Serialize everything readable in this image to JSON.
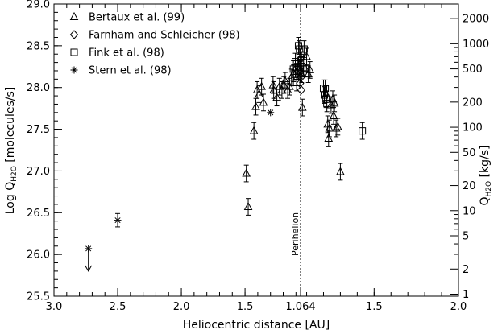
{
  "chart_data": {
    "type": "scatter",
    "xlabel": "Heliocentric distance [AU]",
    "ylabel_main": "Log Q",
    "ylabel_sub": "H2O",
    "ylabel_suffix": "[molecules/s]",
    "y2label_main": "Q",
    "y2label_sub": "H2O",
    "y2label_suffix": "[kg/s]",
    "x_axis_note": "pre-perihelion distances decrease from 3.0 to 1.064 AU at perihelion, post-perihelion distances increase from 1.064 to 2.0 AU",
    "x_ticks": [
      "3.0",
      "2.5",
      "2.0",
      "1.5",
      "1.064",
      "1.5",
      "2.0"
    ],
    "ylim": [
      25.5,
      29.0
    ],
    "y_ticks": [
      "25.5",
      "26.0",
      "26.5",
      "27.0",
      "27.5",
      "28.0",
      "28.5",
      "29.0"
    ],
    "y2_ticks": [
      {
        "label": "1",
        "kgs": 1
      },
      {
        "label": "2",
        "kgs": 2
      },
      {
        "label": "5",
        "kgs": 5
      },
      {
        "label": "10",
        "kgs": 10
      },
      {
        "label": "20",
        "kgs": 20
      },
      {
        "label": "50",
        "kgs": 50
      },
      {
        "label": "100",
        "kgs": 100
      },
      {
        "label": "200",
        "kgs": 200
      },
      {
        "label": "500",
        "kgs": 500
      },
      {
        "label": "1000",
        "kgs": 1000
      },
      {
        "label": "2000",
        "kgs": 2000
      }
    ],
    "perihelion_label": "Perihelion",
    "grid": false,
    "legend_position": "top-left",
    "series": [
      {
        "name": "Bertaux et al. (99)",
        "marker": "triangle",
        "points": [
          {
            "branch": "pre",
            "r": 1.49,
            "y": 26.97,
            "err": 0.1
          },
          {
            "branch": "pre",
            "r": 1.475,
            "y": 26.57,
            "err": 0.1
          },
          {
            "branch": "pre",
            "r": 1.43,
            "y": 27.48,
            "err": 0.1
          },
          {
            "branch": "pre",
            "r": 1.415,
            "y": 27.77,
            "err": 0.1
          },
          {
            "branch": "pre",
            "r": 1.405,
            "y": 27.97,
            "err": 0.1
          },
          {
            "branch": "pre",
            "r": 1.39,
            "y": 27.92,
            "err": 0.1
          },
          {
            "branch": "pre",
            "r": 1.37,
            "y": 28.01,
            "err": 0.1
          },
          {
            "branch": "pre",
            "r": 1.355,
            "y": 27.82,
            "err": 0.1
          },
          {
            "branch": "pre",
            "r": 1.28,
            "y": 28.03,
            "err": 0.1
          },
          {
            "branch": "pre",
            "r": 1.275,
            "y": 27.97,
            "err": 0.1
          },
          {
            "branch": "pre",
            "r": 1.25,
            "y": 27.88,
            "err": 0.1
          },
          {
            "branch": "pre",
            "r": 1.23,
            "y": 28.01,
            "err": 0.1
          },
          {
            "branch": "pre",
            "r": 1.21,
            "y": 27.97,
            "err": 0.1
          },
          {
            "branch": "pre",
            "r": 1.195,
            "y": 28.03,
            "err": 0.1
          },
          {
            "branch": "pre",
            "r": 1.185,
            "y": 28.08,
            "err": 0.1
          },
          {
            "branch": "pre",
            "r": 1.165,
            "y": 27.97,
            "err": 0.1
          },
          {
            "branch": "pre",
            "r": 1.15,
            "y": 28.01,
            "err": 0.1
          },
          {
            "branch": "pre",
            "r": 1.135,
            "y": 28.12,
            "err": 0.1
          },
          {
            "branch": "pre",
            "r": 1.12,
            "y": 28.17,
            "err": 0.1
          },
          {
            "branch": "pre",
            "r": 1.105,
            "y": 28.22,
            "err": 0.1
          },
          {
            "branch": "pre",
            "r": 1.095,
            "y": 28.19,
            "err": 0.1
          },
          {
            "branch": "pre",
            "r": 1.085,
            "y": 28.22,
            "err": 0.1
          },
          {
            "branch": "pre",
            "r": 1.075,
            "y": 28.24,
            "err": 0.1
          },
          {
            "branch": "post",
            "r": 1.07,
            "y": 28.16,
            "err": 0.1
          },
          {
            "branch": "post",
            "r": 1.075,
            "y": 27.76,
            "err": 0.1
          },
          {
            "branch": "post",
            "r": 1.09,
            "y": 28.23,
            "err": 0.1
          },
          {
            "branch": "post",
            "r": 1.1,
            "y": 28.37,
            "err": 0.1
          },
          {
            "branch": "post",
            "r": 1.11,
            "y": 28.16,
            "err": 0.1
          },
          {
            "branch": "post",
            "r": 1.12,
            "y": 28.21,
            "err": 0.1
          },
          {
            "branch": "post",
            "r": 1.215,
            "y": 27.92,
            "err": 0.1
          },
          {
            "branch": "post",
            "r": 1.225,
            "y": 27.56,
            "err": 0.1
          },
          {
            "branch": "post",
            "r": 1.23,
            "y": 27.39,
            "err": 0.1
          },
          {
            "branch": "post",
            "r": 1.235,
            "y": 27.51,
            "err": 0.1
          },
          {
            "branch": "post",
            "r": 1.245,
            "y": 27.79,
            "err": 0.1
          },
          {
            "branch": "post",
            "r": 1.255,
            "y": 27.86,
            "err": 0.1
          },
          {
            "branch": "post",
            "r": 1.26,
            "y": 27.66,
            "err": 0.1
          },
          {
            "branch": "post",
            "r": 1.265,
            "y": 27.81,
            "err": 0.1
          },
          {
            "branch": "post",
            "r": 1.275,
            "y": 27.51,
            "err": 0.1
          },
          {
            "branch": "post",
            "r": 1.285,
            "y": 27.53,
            "err": 0.1
          },
          {
            "branch": "post",
            "r": 1.3,
            "y": 26.99,
            "err": 0.1
          }
        ]
      },
      {
        "name": "Farnham and Schleicher (98)",
        "marker": "diamond",
        "points": [
          {
            "branch": "pre",
            "r": 1.07,
            "y": 28.18,
            "err": 0
          },
          {
            "branch": "pre",
            "r": 1.068,
            "y": 28.05,
            "err": 0
          },
          {
            "branch": "post",
            "r": 1.066,
            "y": 28.12,
            "err": 0
          },
          {
            "branch": "post",
            "r": 1.068,
            "y": 27.97,
            "err": 0
          }
        ]
      },
      {
        "name": "Fink et al. (98)",
        "marker": "square",
        "points": [
          {
            "branch": "pre",
            "r": 1.12,
            "y": 28.22,
            "err": 0.1
          },
          {
            "branch": "pre",
            "r": 1.105,
            "y": 28.31,
            "err": 0.1
          },
          {
            "branch": "pre",
            "r": 1.095,
            "y": 28.06,
            "err": 0.1
          },
          {
            "branch": "pre",
            "r": 1.08,
            "y": 28.5,
            "err": 0.1
          },
          {
            "branch": "pre",
            "r": 1.072,
            "y": 28.46,
            "err": 0.1
          },
          {
            "branch": "pre",
            "r": 1.068,
            "y": 28.36,
            "err": 0.1
          },
          {
            "branch": "pre",
            "r": 1.066,
            "y": 28.21,
            "err": 0.1
          },
          {
            "branch": "post",
            "r": 1.07,
            "y": 28.33,
            "err": 0.1
          },
          {
            "branch": "post",
            "r": 1.085,
            "y": 28.46,
            "err": 0.1
          },
          {
            "branch": "post",
            "r": 1.08,
            "y": 28.24,
            "err": 0.1
          },
          {
            "branch": "post",
            "r": 1.2,
            "y": 27.99,
            "err": 0.1
          },
          {
            "branch": "post",
            "r": 1.205,
            "y": 27.91,
            "err": 0.1
          },
          {
            "branch": "post",
            "r": 1.21,
            "y": 27.99,
            "err": 0.1
          },
          {
            "branch": "post",
            "r": 1.215,
            "y": 27.86,
            "err": 0.1
          },
          {
            "branch": "post",
            "r": 1.22,
            "y": 27.81,
            "err": 0.1
          },
          {
            "branch": "post",
            "r": 1.43,
            "y": 27.48,
            "err": 0.1
          }
        ]
      },
      {
        "name": "Stern et al. (98)",
        "marker": "asterisk",
        "points": [
          {
            "branch": "pre",
            "r": 2.73,
            "y": 26.07,
            "err": 0,
            "upper_limit": true
          },
          {
            "branch": "pre",
            "r": 2.5,
            "y": 26.41,
            "err": 0.08
          },
          {
            "branch": "pre",
            "r": 1.3,
            "y": 27.7,
            "err": 0
          }
        ]
      }
    ]
  }
}
